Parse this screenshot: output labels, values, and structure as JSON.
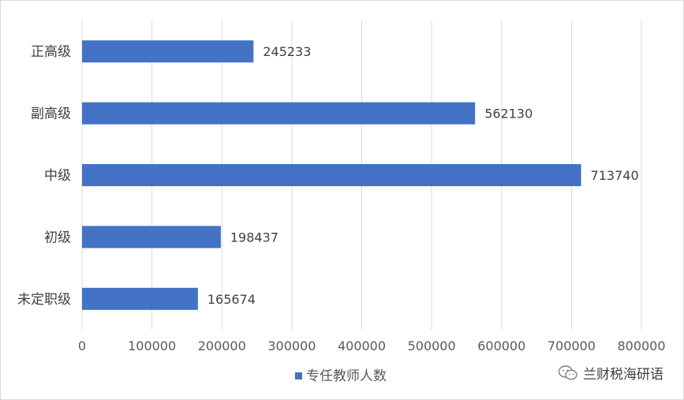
{
  "chart_data": {
    "type": "bar",
    "orientation": "horizontal",
    "categories": [
      "正高级",
      "副高级",
      "中级",
      "初级",
      "未定职级"
    ],
    "series": [
      {
        "name": "专任教师人数",
        "values": [
          245233,
          562130,
          713740,
          198437,
          165674
        ],
        "color": "#4472C4"
      }
    ],
    "xlim": [
      0,
      800000
    ],
    "xticks": [
      0,
      100000,
      200000,
      300000,
      400000,
      500000,
      600000,
      700000,
      800000
    ],
    "grid": true,
    "legend_position": "bottom",
    "data_labels": true
  },
  "watermark": {
    "icon": "wechat-icon",
    "text": "兰财税海研语"
  },
  "colors": {
    "bar": "#4472C4",
    "grid": "#d9d9d9",
    "axis_text": "#595959"
  }
}
